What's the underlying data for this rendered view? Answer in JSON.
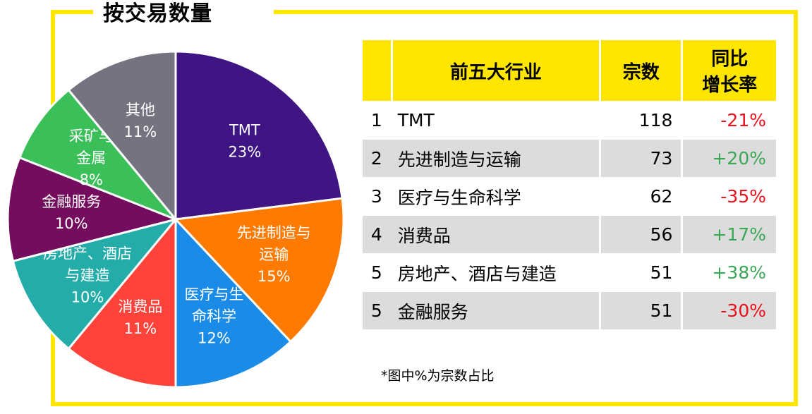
{
  "title": "按交易数量",
  "table": {
    "headers": {
      "industry": "前五大行业",
      "count": "宗数",
      "growth_line1": "同比",
      "growth_line2": "增长率"
    },
    "rows": [
      {
        "rank": "1",
        "industry": "TMT",
        "count": "118",
        "growth": "-21%"
      },
      {
        "rank": "2",
        "industry": "先进制造与运输",
        "count": "73",
        "growth": "+20%"
      },
      {
        "rank": "3",
        "industry": "医疗与生命科学",
        "count": "62",
        "growth": "-35%"
      },
      {
        "rank": "4",
        "industry": "消费品",
        "count": "56",
        "growth": "+17%"
      },
      {
        "rank": "5",
        "industry": "房地产、酒店与建造",
        "count": "51",
        "growth": "+38%"
      },
      {
        "rank": "5",
        "industry": "金融服务",
        "count": "51",
        "growth": "-30%"
      }
    ]
  },
  "footnote": "*图中%为宗数占比",
  "colors": {
    "frame": "#ffe600",
    "negative": "#e8101a",
    "positive": "#3aa756"
  },
  "chart_data": {
    "type": "pie",
    "slices": [
      {
        "label_lines": [
          "TMT"
        ],
        "pct_text": "23%",
        "value": 23,
        "color": "#3f1583"
      },
      {
        "label_lines": [
          "先进制造与",
          "运输"
        ],
        "pct_text": "15%",
        "value": 15,
        "color": "#ff7a00"
      },
      {
        "label_lines": [
          "医疗与生",
          "命科学"
        ],
        "pct_text": "12%",
        "value": 12,
        "color": "#1a8be6"
      },
      {
        "label_lines": [
          "消费品"
        ],
        "pct_text": "11%",
        "value": 11,
        "color": "#ff433b"
      },
      {
        "label_lines": [
          "房地产、酒店",
          "与建造"
        ],
        "pct_text": "10%",
        "value": 10,
        "color": "#23aca8"
      },
      {
        "label_lines": [
          "金融服务"
        ],
        "pct_text": "10%",
        "value": 10,
        "color": "#740d5e"
      },
      {
        "label_lines": [
          "采矿与",
          "金属"
        ],
        "pct_text": "8%",
        "value": 8,
        "color": "#3bbf58"
      },
      {
        "label_lines": [
          "其他"
        ],
        "pct_text": "11%",
        "value": 11,
        "color": "#747480"
      }
    ]
  }
}
